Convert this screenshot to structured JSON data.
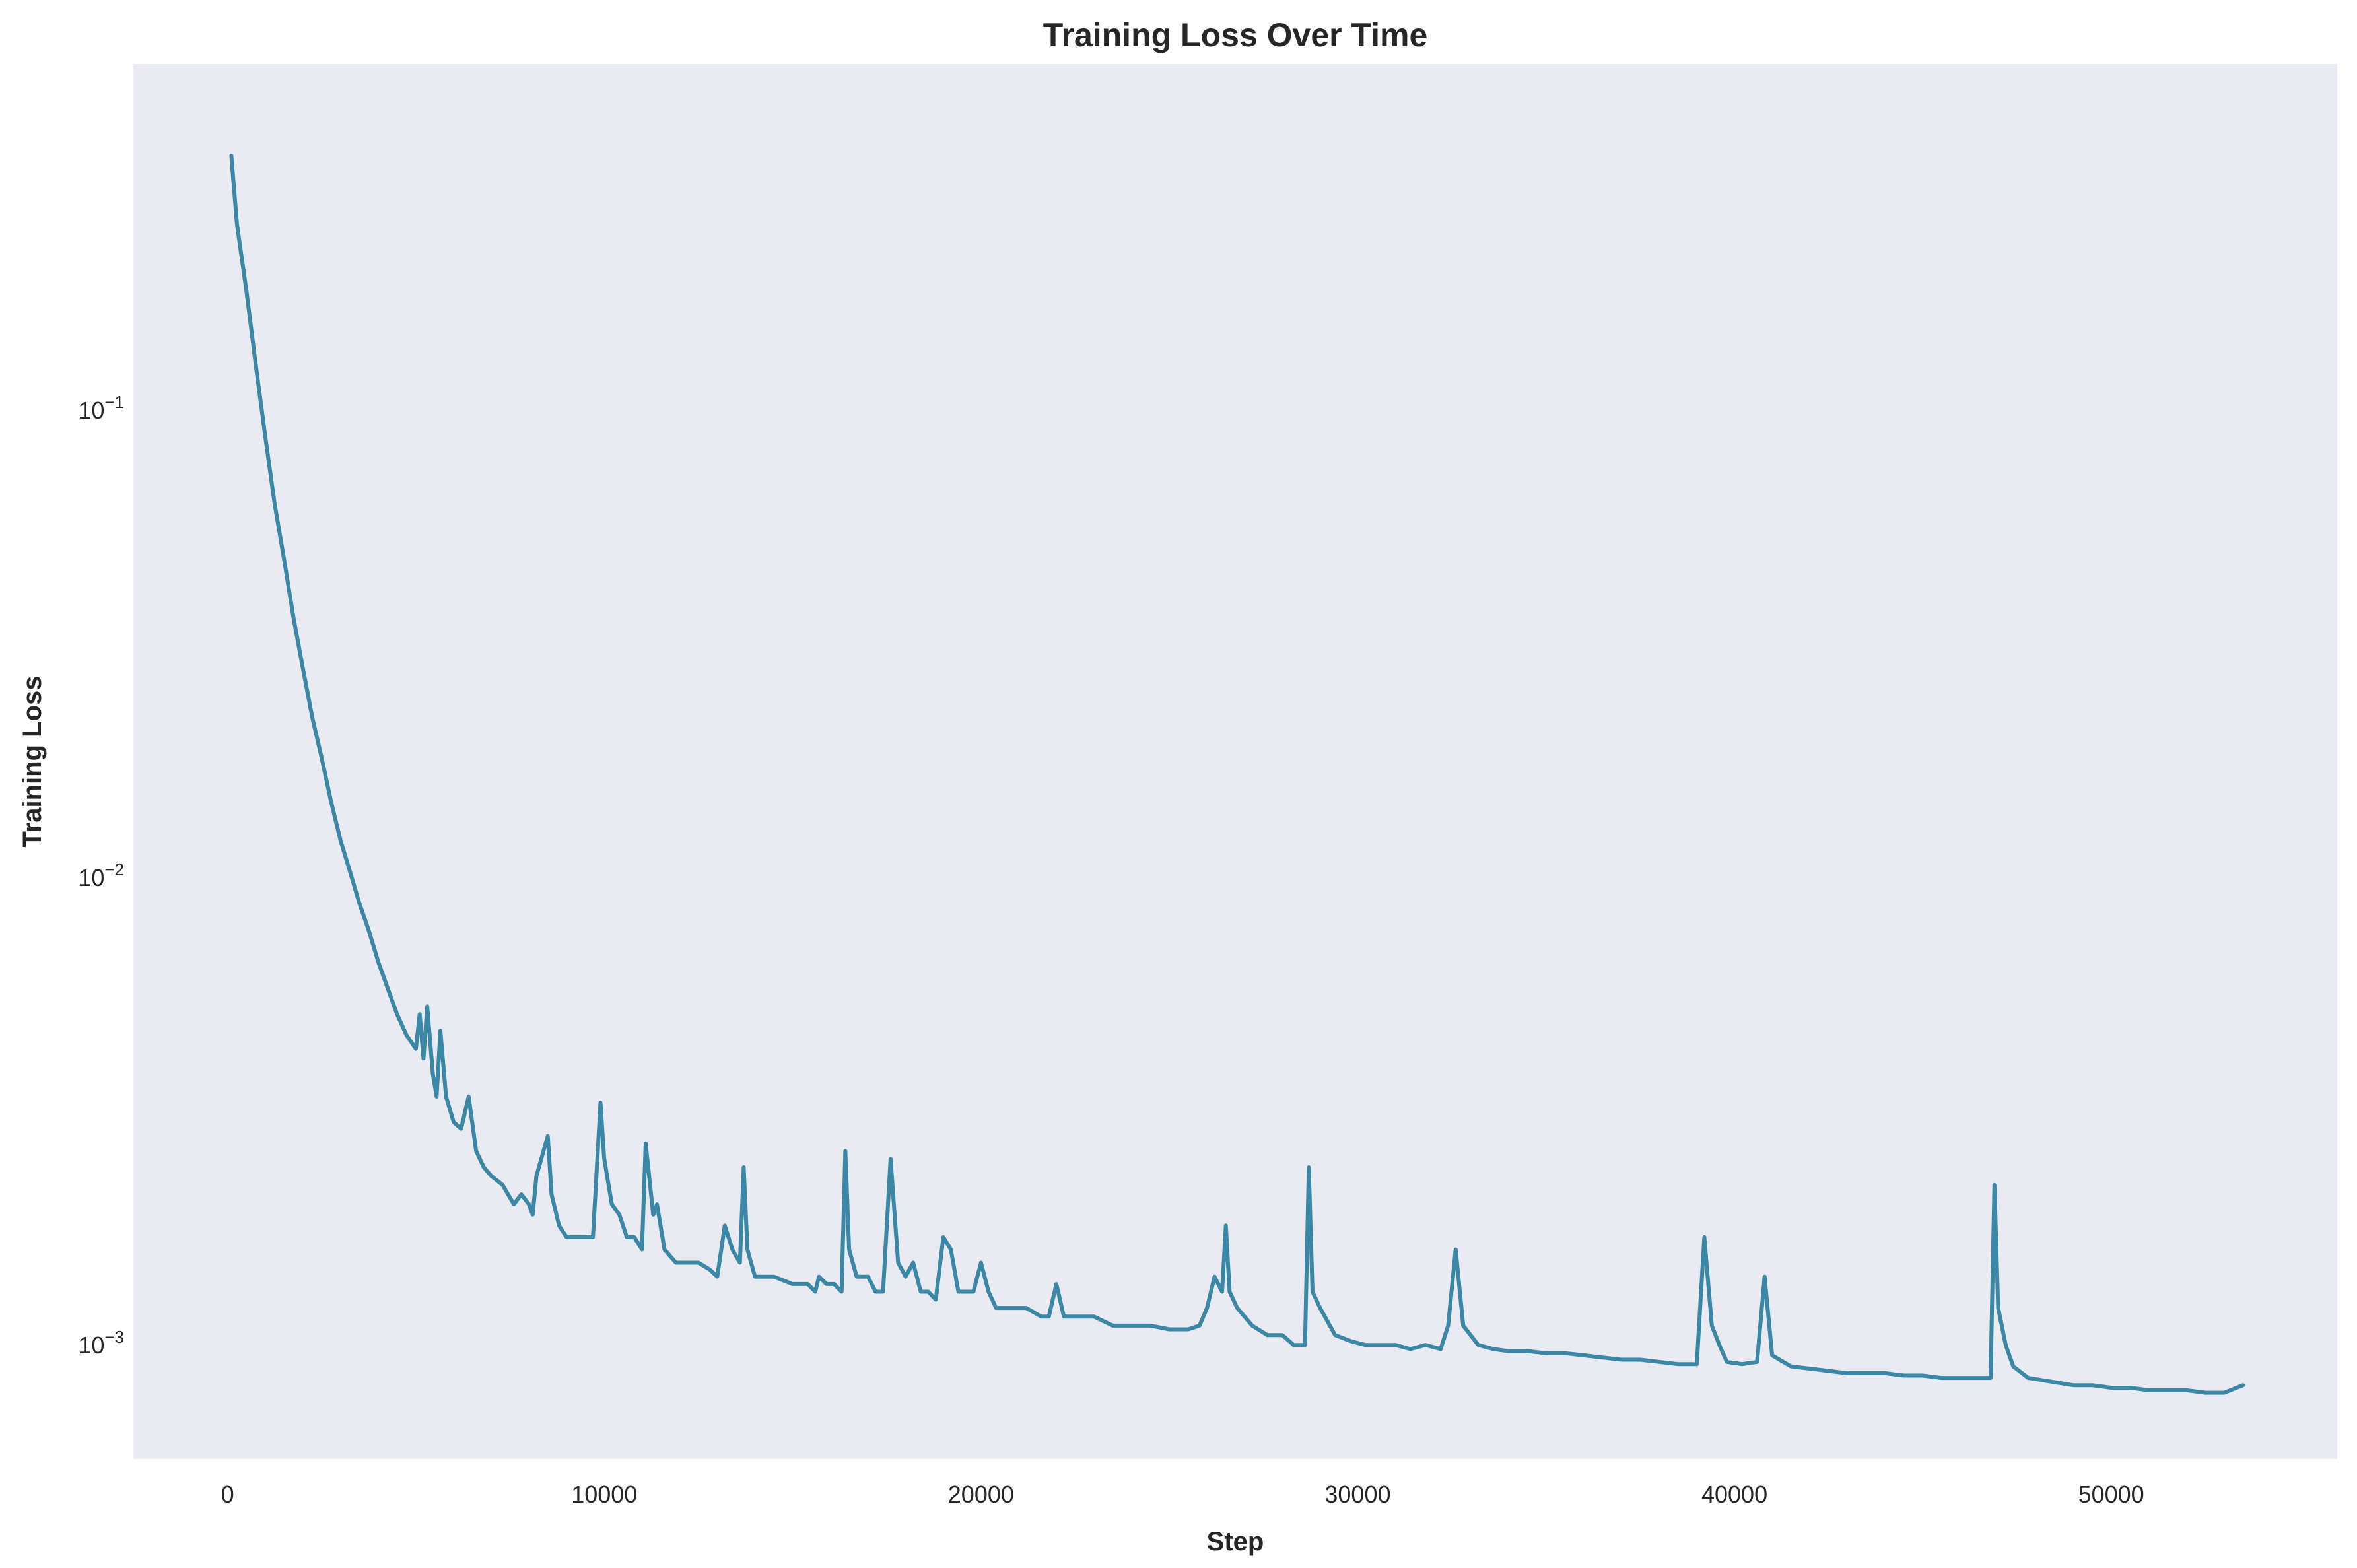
{
  "chart_data": {
    "type": "line",
    "title": "Training Loss Over Time",
    "xlabel": "Step",
    "ylabel": "Training Loss",
    "yscale": "log",
    "grid": false,
    "legend": "none",
    "xlim": [
      -2500,
      56000
    ],
    "ylim": [
      0.00057,
      0.55
    ],
    "x_ticks": [
      0,
      10000,
      20000,
      30000,
      40000,
      50000
    ],
    "x_tick_labels": [
      "0",
      "10000",
      "20000",
      "30000",
      "40000",
      "50000"
    ],
    "y_ticks": [
      0.001,
      0.01,
      0.1
    ],
    "y_tick_labels": [
      {
        "base": "10",
        "exp": "−3"
      },
      {
        "base": "10",
        "exp": "−2"
      },
      {
        "base": "10",
        "exp": "−1"
      }
    ],
    "colors": {
      "plot_background": "#eaeaf2",
      "line": "#3a87a6",
      "text": "#262626"
    },
    "series": [
      {
        "name": "",
        "points": [
          [
            100,
            0.35
          ],
          [
            250,
            0.25
          ],
          [
            500,
            0.18
          ],
          [
            750,
            0.125
          ],
          [
            1000,
            0.088
          ],
          [
            1250,
            0.063
          ],
          [
            1500,
            0.048
          ],
          [
            1750,
            0.036
          ],
          [
            2000,
            0.028
          ],
          [
            2250,
            0.022
          ],
          [
            2500,
            0.018
          ],
          [
            2750,
            0.0145
          ],
          [
            3000,
            0.012
          ],
          [
            3250,
            0.0103
          ],
          [
            3500,
            0.0088
          ],
          [
            3750,
            0.0077
          ],
          [
            4000,
            0.0066
          ],
          [
            4250,
            0.0058
          ],
          [
            4500,
            0.0051
          ],
          [
            4750,
            0.0046
          ],
          [
            5000,
            0.0043
          ],
          [
            5100,
            0.0051
          ],
          [
            5200,
            0.0041
          ],
          [
            5300,
            0.0053
          ],
          [
            5450,
            0.0038
          ],
          [
            5550,
            0.0034
          ],
          [
            5650,
            0.0047
          ],
          [
            5800,
            0.0034
          ],
          [
            6000,
            0.003
          ],
          [
            6200,
            0.0029
          ],
          [
            6400,
            0.0034
          ],
          [
            6600,
            0.0026
          ],
          [
            6800,
            0.0024
          ],
          [
            7000,
            0.0023
          ],
          [
            7300,
            0.0022
          ],
          [
            7600,
            0.002
          ],
          [
            7800,
            0.0021
          ],
          [
            8000,
            0.002
          ],
          [
            8100,
            0.0019
          ],
          [
            8200,
            0.0023
          ],
          [
            8500,
            0.0028
          ],
          [
            8600,
            0.0021
          ],
          [
            8800,
            0.0018
          ],
          [
            9000,
            0.0017
          ],
          [
            9400,
            0.0017
          ],
          [
            9700,
            0.0017
          ],
          [
            9900,
            0.0033
          ],
          [
            10000,
            0.0025
          ],
          [
            10200,
            0.002
          ],
          [
            10400,
            0.0019
          ],
          [
            10600,
            0.0017
          ],
          [
            10800,
            0.0017
          ],
          [
            11000,
            0.0016
          ],
          [
            11100,
            0.0027
          ],
          [
            11300,
            0.0019
          ],
          [
            11400,
            0.002
          ],
          [
            11600,
            0.0016
          ],
          [
            11900,
            0.0015
          ],
          [
            12200,
            0.0015
          ],
          [
            12500,
            0.0015
          ],
          [
            12800,
            0.00145
          ],
          [
            13000,
            0.0014
          ],
          [
            13200,
            0.0018
          ],
          [
            13400,
            0.0016
          ],
          [
            13600,
            0.0015
          ],
          [
            13700,
            0.0024
          ],
          [
            13800,
            0.0016
          ],
          [
            14000,
            0.0014
          ],
          [
            14200,
            0.0014
          ],
          [
            14500,
            0.0014
          ],
          [
            15000,
            0.00135
          ],
          [
            15400,
            0.00135
          ],
          [
            15600,
            0.0013
          ],
          [
            15700,
            0.0014
          ],
          [
            15900,
            0.00135
          ],
          [
            16100,
            0.00135
          ],
          [
            16300,
            0.0013
          ],
          [
            16400,
            0.0026
          ],
          [
            16500,
            0.0016
          ],
          [
            16700,
            0.0014
          ],
          [
            17000,
            0.0014
          ],
          [
            17200,
            0.0013
          ],
          [
            17400,
            0.0013
          ],
          [
            17600,
            0.0025
          ],
          [
            17800,
            0.0015
          ],
          [
            18000,
            0.0014
          ],
          [
            18200,
            0.0015
          ],
          [
            18400,
            0.0013
          ],
          [
            18600,
            0.0013
          ],
          [
            18800,
            0.00125
          ],
          [
            19000,
            0.0017
          ],
          [
            19200,
            0.0016
          ],
          [
            19400,
            0.0013
          ],
          [
            19600,
            0.0013
          ],
          [
            19800,
            0.0013
          ],
          [
            20000,
            0.0015
          ],
          [
            20200,
            0.0013
          ],
          [
            20400,
            0.0012
          ],
          [
            20800,
            0.0012
          ],
          [
            21200,
            0.0012
          ],
          [
            21600,
            0.00115
          ],
          [
            21800,
            0.00115
          ],
          [
            22000,
            0.00135
          ],
          [
            22200,
            0.00115
          ],
          [
            22600,
            0.00115
          ],
          [
            23000,
            0.00115
          ],
          [
            23500,
            0.0011
          ],
          [
            24000,
            0.0011
          ],
          [
            24500,
            0.0011
          ],
          [
            25000,
            0.00108
          ],
          [
            25500,
            0.00108
          ],
          [
            25800,
            0.0011
          ],
          [
            26000,
            0.0012
          ],
          [
            26200,
            0.0014
          ],
          [
            26400,
            0.0013
          ],
          [
            26500,
            0.0018
          ],
          [
            26600,
            0.0013
          ],
          [
            26800,
            0.0012
          ],
          [
            27200,
            0.0011
          ],
          [
            27600,
            0.00105
          ],
          [
            28000,
            0.00105
          ],
          [
            28300,
            0.001
          ],
          [
            28600,
            0.001
          ],
          [
            28700,
            0.0024
          ],
          [
            28800,
            0.0013
          ],
          [
            29000,
            0.0012
          ],
          [
            29400,
            0.00105
          ],
          [
            29800,
            0.00102
          ],
          [
            30200,
            0.001
          ],
          [
            30600,
            0.001
          ],
          [
            31000,
            0.001
          ],
          [
            31400,
            0.00098
          ],
          [
            31800,
            0.001
          ],
          [
            32200,
            0.00098
          ],
          [
            32400,
            0.0011
          ],
          [
            32600,
            0.0016
          ],
          [
            32800,
            0.0011
          ],
          [
            33200,
            0.001
          ],
          [
            33600,
            0.00098
          ],
          [
            34000,
            0.00097
          ],
          [
            34500,
            0.00097
          ],
          [
            35000,
            0.00096
          ],
          [
            35500,
            0.00096
          ],
          [
            36000,
            0.00095
          ],
          [
            36500,
            0.00094
          ],
          [
            37000,
            0.00093
          ],
          [
            37500,
            0.00093
          ],
          [
            38000,
            0.00092
          ],
          [
            38500,
            0.00091
          ],
          [
            39000,
            0.00091
          ],
          [
            39200,
            0.0017
          ],
          [
            39400,
            0.0011
          ],
          [
            39600,
            0.001
          ],
          [
            39800,
            0.00092
          ],
          [
            40200,
            0.00091
          ],
          [
            40600,
            0.00092
          ],
          [
            40800,
            0.0014
          ],
          [
            41000,
            0.00095
          ],
          [
            41500,
            0.0009
          ],
          [
            42000,
            0.00089
          ],
          [
            42500,
            0.00088
          ],
          [
            43000,
            0.00087
          ],
          [
            43500,
            0.00087
          ],
          [
            44000,
            0.00087
          ],
          [
            44500,
            0.00086
          ],
          [
            45000,
            0.00086
          ],
          [
            45500,
            0.00085
          ],
          [
            46000,
            0.00085
          ],
          [
            46500,
            0.00085
          ],
          [
            46800,
            0.00085
          ],
          [
            46900,
            0.0022
          ],
          [
            47000,
            0.0012
          ],
          [
            47200,
            0.001
          ],
          [
            47400,
            0.0009
          ],
          [
            47800,
            0.00085
          ],
          [
            48200,
            0.00084
          ],
          [
            48600,
            0.00083
          ],
          [
            49000,
            0.00082
          ],
          [
            49500,
            0.00082
          ],
          [
            50000,
            0.00081
          ],
          [
            50500,
            0.00081
          ],
          [
            51000,
            0.0008
          ],
          [
            51500,
            0.0008
          ],
          [
            52000,
            0.0008
          ],
          [
            52500,
            0.00079
          ],
          [
            53000,
            0.00079
          ],
          [
            53500,
            0.00082
          ]
        ]
      }
    ]
  }
}
